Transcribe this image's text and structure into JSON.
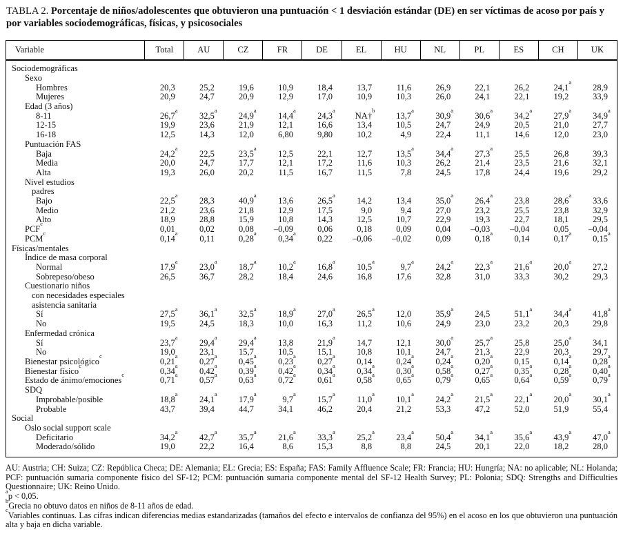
{
  "title": {
    "label": "TABLA 2.",
    "text": "Porcentaje de niños/adolescentes que obtuvieron una puntuación < 1 desviación estándar (DE) en ser víctimas de acoso por país y por variables sociodemográficas, físicas, y psicosociales"
  },
  "table": {
    "columns": [
      "Variable",
      "Total",
      "AU",
      "CZ",
      "FR",
      "DE",
      "EL",
      "HU",
      "NL",
      "PL",
      "ES",
      "CH",
      "UK"
    ],
    "rows": [
      {
        "label": "Sociodemográficas",
        "indent": 0,
        "values": []
      },
      {
        "label": "Sexo",
        "indent": 1,
        "values": []
      },
      {
        "label": "Hombres",
        "indent": 2,
        "values": [
          "20,3",
          "25,2",
          "19,6",
          "10,9",
          "18,4",
          "13,7",
          "11,6",
          "26,9",
          "22,1",
          "26,2",
          "24,1^a",
          "28,9"
        ]
      },
      {
        "label": "Mujeres",
        "indent": 2,
        "values": [
          "20,9",
          "24,7",
          "20,9",
          "12,9",
          "17,0",
          "10,9",
          "10,3",
          "26,0",
          "24,1",
          "22,1",
          "19,2",
          "33,9"
        ]
      },
      {
        "label": "Edad (3 años)",
        "indent": 1,
        "values": []
      },
      {
        "label": "8-11",
        "indent": 2,
        "values": [
          "26,7^a",
          "32,5^a",
          "24,9^a",
          "14,4^a",
          "24,3^a",
          "NA†^b",
          "13,7^a",
          "30,9^a",
          "30,6^a",
          "34,2^a",
          "27,9^a",
          "34,9^a"
        ]
      },
      {
        "label": "12-15",
        "indent": 2,
        "values": [
          "19,9",
          "23,6",
          "21,9",
          "12,1",
          "16,6",
          "13,4",
          "10,5",
          "24,7",
          "24,9",
          "20,5",
          "21,0",
          "27,7"
        ]
      },
      {
        "label": "16-18",
        "indent": 2,
        "values": [
          "12,5",
          "14,3",
          "12,0",
          "6,80",
          "9,80",
          "10,2",
          "4,9",
          "22,4",
          "11,1",
          "14,6",
          "12,0",
          "23,0"
        ]
      },
      {
        "label": "Puntuación FAS",
        "indent": 1,
        "values": []
      },
      {
        "label": "Baja",
        "indent": 2,
        "values": [
          "24,2^a",
          "22,5",
          "23,5^a",
          "12,5",
          "22,1",
          "12,7",
          "13,5^a",
          "34,4^a",
          "27,3^a",
          "25,5",
          "26,8",
          "39,3"
        ]
      },
      {
        "label": "Media",
        "indent": 2,
        "values": [
          "20,0",
          "24,7",
          "17,7",
          "12,1",
          "17,2",
          "11,6",
          "10,3",
          "26,2",
          "21,4",
          "23,5",
          "21,6",
          "32,1"
        ]
      },
      {
        "label": "Alta",
        "indent": 2,
        "values": [
          "19,3",
          "26,0",
          "20,2",
          "11,5",
          "16,7",
          "11,5",
          "7,8",
          "24,5",
          "17,8",
          "24,4",
          "19,6",
          "29,2"
        ]
      },
      {
        "label": "Nivel estudios",
        "indent": 1,
        "values": []
      },
      {
        "label": "padres",
        "indent": 3,
        "values": []
      },
      {
        "label": "Bajo",
        "indent": 2,
        "values": [
          "22,5^a",
          "28,3",
          "40,9^a",
          "13,6",
          "26,5^a",
          "14,2",
          "13,4",
          "35,0^a",
          "26,4^a",
          "23,8",
          "28,6^a",
          "33,6"
        ]
      },
      {
        "label": "Medio",
        "indent": 2,
        "values": [
          "21,2",
          "23,6",
          "21,8",
          "12,9",
          "17,5",
          "9,0",
          "9,4",
          "27,0",
          "23,2",
          "25,5",
          "23,8",
          "32,9"
        ]
      },
      {
        "label": "Alto",
        "indent": 2,
        "values": [
          "18,9",
          "28,8",
          "15,9",
          "10,8",
          "14,3",
          "12,5",
          "10,7",
          "22,9",
          "19,3",
          "22,7",
          "18,1",
          "29,5"
        ]
      },
      {
        "label": "PCF^c",
        "indent": 1,
        "values": [
          "0,01",
          "0,02",
          "0,08",
          "–0,09",
          "0,06",
          "0,18",
          "0,09",
          "0,04",
          "–0,03",
          "–0,04",
          "0,05",
          "–0,04"
        ]
      },
      {
        "label": "PCM^c",
        "indent": 1,
        "values": [
          "0,14^a",
          "0,11",
          "0,28^a",
          "0,34^a",
          "0,22",
          "–0,06",
          "–0,02",
          "0,09",
          "0,18^a",
          "0,14",
          "0,17^a",
          "0,15^a"
        ]
      },
      {
        "label": "Físicas/mentales",
        "indent": 0,
        "values": []
      },
      {
        "label": "Índice de masa corporal",
        "indent": 1,
        "values": []
      },
      {
        "label": "Normal",
        "indent": 2,
        "values": [
          "17,9^a",
          "23,0^a",
          "18,7^a",
          "10,2^a",
          "16,8^a",
          "10,5^a",
          "9,7^a",
          "24,2^a",
          "22,3^a",
          "21,6^a",
          "20,0^a",
          "27,2"
        ]
      },
      {
        "label": "Sobrepeso/obeso",
        "indent": 2,
        "values": [
          "26,5",
          "36,7",
          "28,2",
          "18,4",
          "24,6",
          "16,8",
          "17,6",
          "32,8",
          "31,0",
          "33,3",
          "30,2",
          "29,3"
        ]
      },
      {
        "label": "Cuestionario niños",
        "indent": 1,
        "values": []
      },
      {
        "label": "con necesidades especiales",
        "indent": 3,
        "values": []
      },
      {
        "label": "asistencia sanitaria",
        "indent": 3,
        "values": []
      },
      {
        "label": "Sí",
        "indent": 2,
        "values": [
          "27,5^a",
          "36,1^a",
          "32,5^a",
          "18,9^a",
          "27,0^a",
          "26,5^a",
          "12,0",
          "35,9^a",
          "24,5",
          "51,1^a",
          "34,4^a",
          "41,8^a"
        ]
      },
      {
        "label": "No",
        "indent": 2,
        "values": [
          "19,5",
          "24,5",
          "18,3",
          "10,0",
          "16,3",
          "11,2",
          "10,6",
          "24,9",
          "23,0",
          "23,2",
          "20,3",
          "29,8"
        ]
      },
      {
        "label": "Enfermedad crónica",
        "indent": 1,
        "values": []
      },
      {
        "label": "Sí",
        "indent": 2,
        "values": [
          "23,7^a",
          "29,4^a",
          "29,4^a",
          "13,8",
          "21,9^a",
          "14,7",
          "12,1",
          "30,0^a",
          "25,7^a",
          "25,8",
          "25,0^a",
          "34,1"
        ]
      },
      {
        "label": "No",
        "indent": 2,
        "values": [
          "19,0",
          "23,1",
          "15,7",
          "10,5",
          "15,1",
          "10,8",
          "10,1",
          "24,7",
          "21,3",
          "22,9",
          "20,3",
          "29,7"
        ]
      },
      {
        "label": "Bienestar psicológico^c",
        "indent": 1,
        "values": [
          "0,21^a",
          "0,27^a",
          "0,45^a",
          "0,23^a",
          "0,27^a",
          "0,14",
          "0,24^a",
          "0,24^a",
          "0,20^a",
          "0,15",
          "0,14^a",
          "0,28^a"
        ]
      },
      {
        "label": "Bienestar físico^c",
        "indent": 1,
        "values": [
          "0,34^a",
          "0,42^a",
          "0,39^a",
          "0,42^a",
          "0,34^a",
          "0,34^a",
          "0,30^a",
          "0,58^a",
          "0,27^a",
          "0,35^a",
          "0,28^a",
          "0,40^a"
        ]
      },
      {
        "label": "Estado de ánimo/emociones^c",
        "indent": 1,
        "values": [
          "0,71^a",
          "0,57^a",
          "0,63^a",
          "0,72^a",
          "0,61^a",
          "0,58^a",
          "0,65^a",
          "0,79^a",
          "0,65^a",
          "0,64^a",
          "0,59^a",
          "0,79^a"
        ]
      },
      {
        "label": "SDQ",
        "indent": 1,
        "values": []
      },
      {
        "label": "Improbable/posible",
        "indent": 2,
        "values": [
          "18,8^a",
          "24,1^a",
          "17,9^a",
          "9,7^a",
          "15,7^a",
          "11,0^a",
          "10,1^a",
          "24,2^a",
          "21,5^a",
          "22,1^a",
          "20,0^a",
          "30,1^a"
        ]
      },
      {
        "label": "Probable",
        "indent": 2,
        "values": [
          "43,7",
          "39,4",
          "44,7",
          "34,1",
          "46,2",
          "20,4",
          "21,2",
          "53,3",
          "47,2",
          "52,0",
          "51,9",
          "55,4"
        ]
      },
      {
        "label": "Social",
        "indent": 0,
        "values": []
      },
      {
        "label": "Oslo social support scale",
        "indent": 1,
        "values": []
      },
      {
        "label": "Deficitario",
        "indent": 2,
        "values": [
          "34,2^a",
          "42,7^a",
          "35,7^a",
          "21,6^a",
          "33,3^a",
          "25,2^a",
          "23,4^a",
          "50,4^a",
          "34,1^a",
          "35,6^a",
          "43,9^a",
          "47,0^a"
        ]
      },
      {
        "label": "Moderado/sólido",
        "indent": 2,
        "values": [
          "19,0",
          "22,2",
          "16,4",
          "8,6",
          "15,3",
          "8,8",
          "8,8",
          "24,5",
          "20,1",
          "22,0",
          "18,2",
          "28,0"
        ]
      }
    ]
  },
  "footnotes": {
    "abbreviations": "AU: Austria; CH: Suiza; CZ: República Checa; DE: Alemania; EL: Grecia; ES: España; FAS: Family Affluence Scale; FR: Francia; HU: Hungría; NA: no aplicable; NL: Holanda; PCF: puntuación sumaria componente físico del SF-12; PCM: puntuación sumaria componente mental del SF-12 Health Survey; PL: Polonia; SDQ: Strengths and Difficulties Questionnaire; UK: Reino Unido.",
    "notes": [
      {
        "sup": "a",
        "text": "p < 0,05."
      },
      {
        "sup": "b",
        "text": "Grecia no obtuvo datos en niños de 8-11 años de edad."
      },
      {
        "sup": "c",
        "text": "Variables continuas. Las cifras indican diferencias medias estandarizadas (tamaños del efecto e intervalos de confianza del 95%) en el acoso en los que obtuvieron una puntuación alta y baja en dicha variable."
      }
    ]
  }
}
